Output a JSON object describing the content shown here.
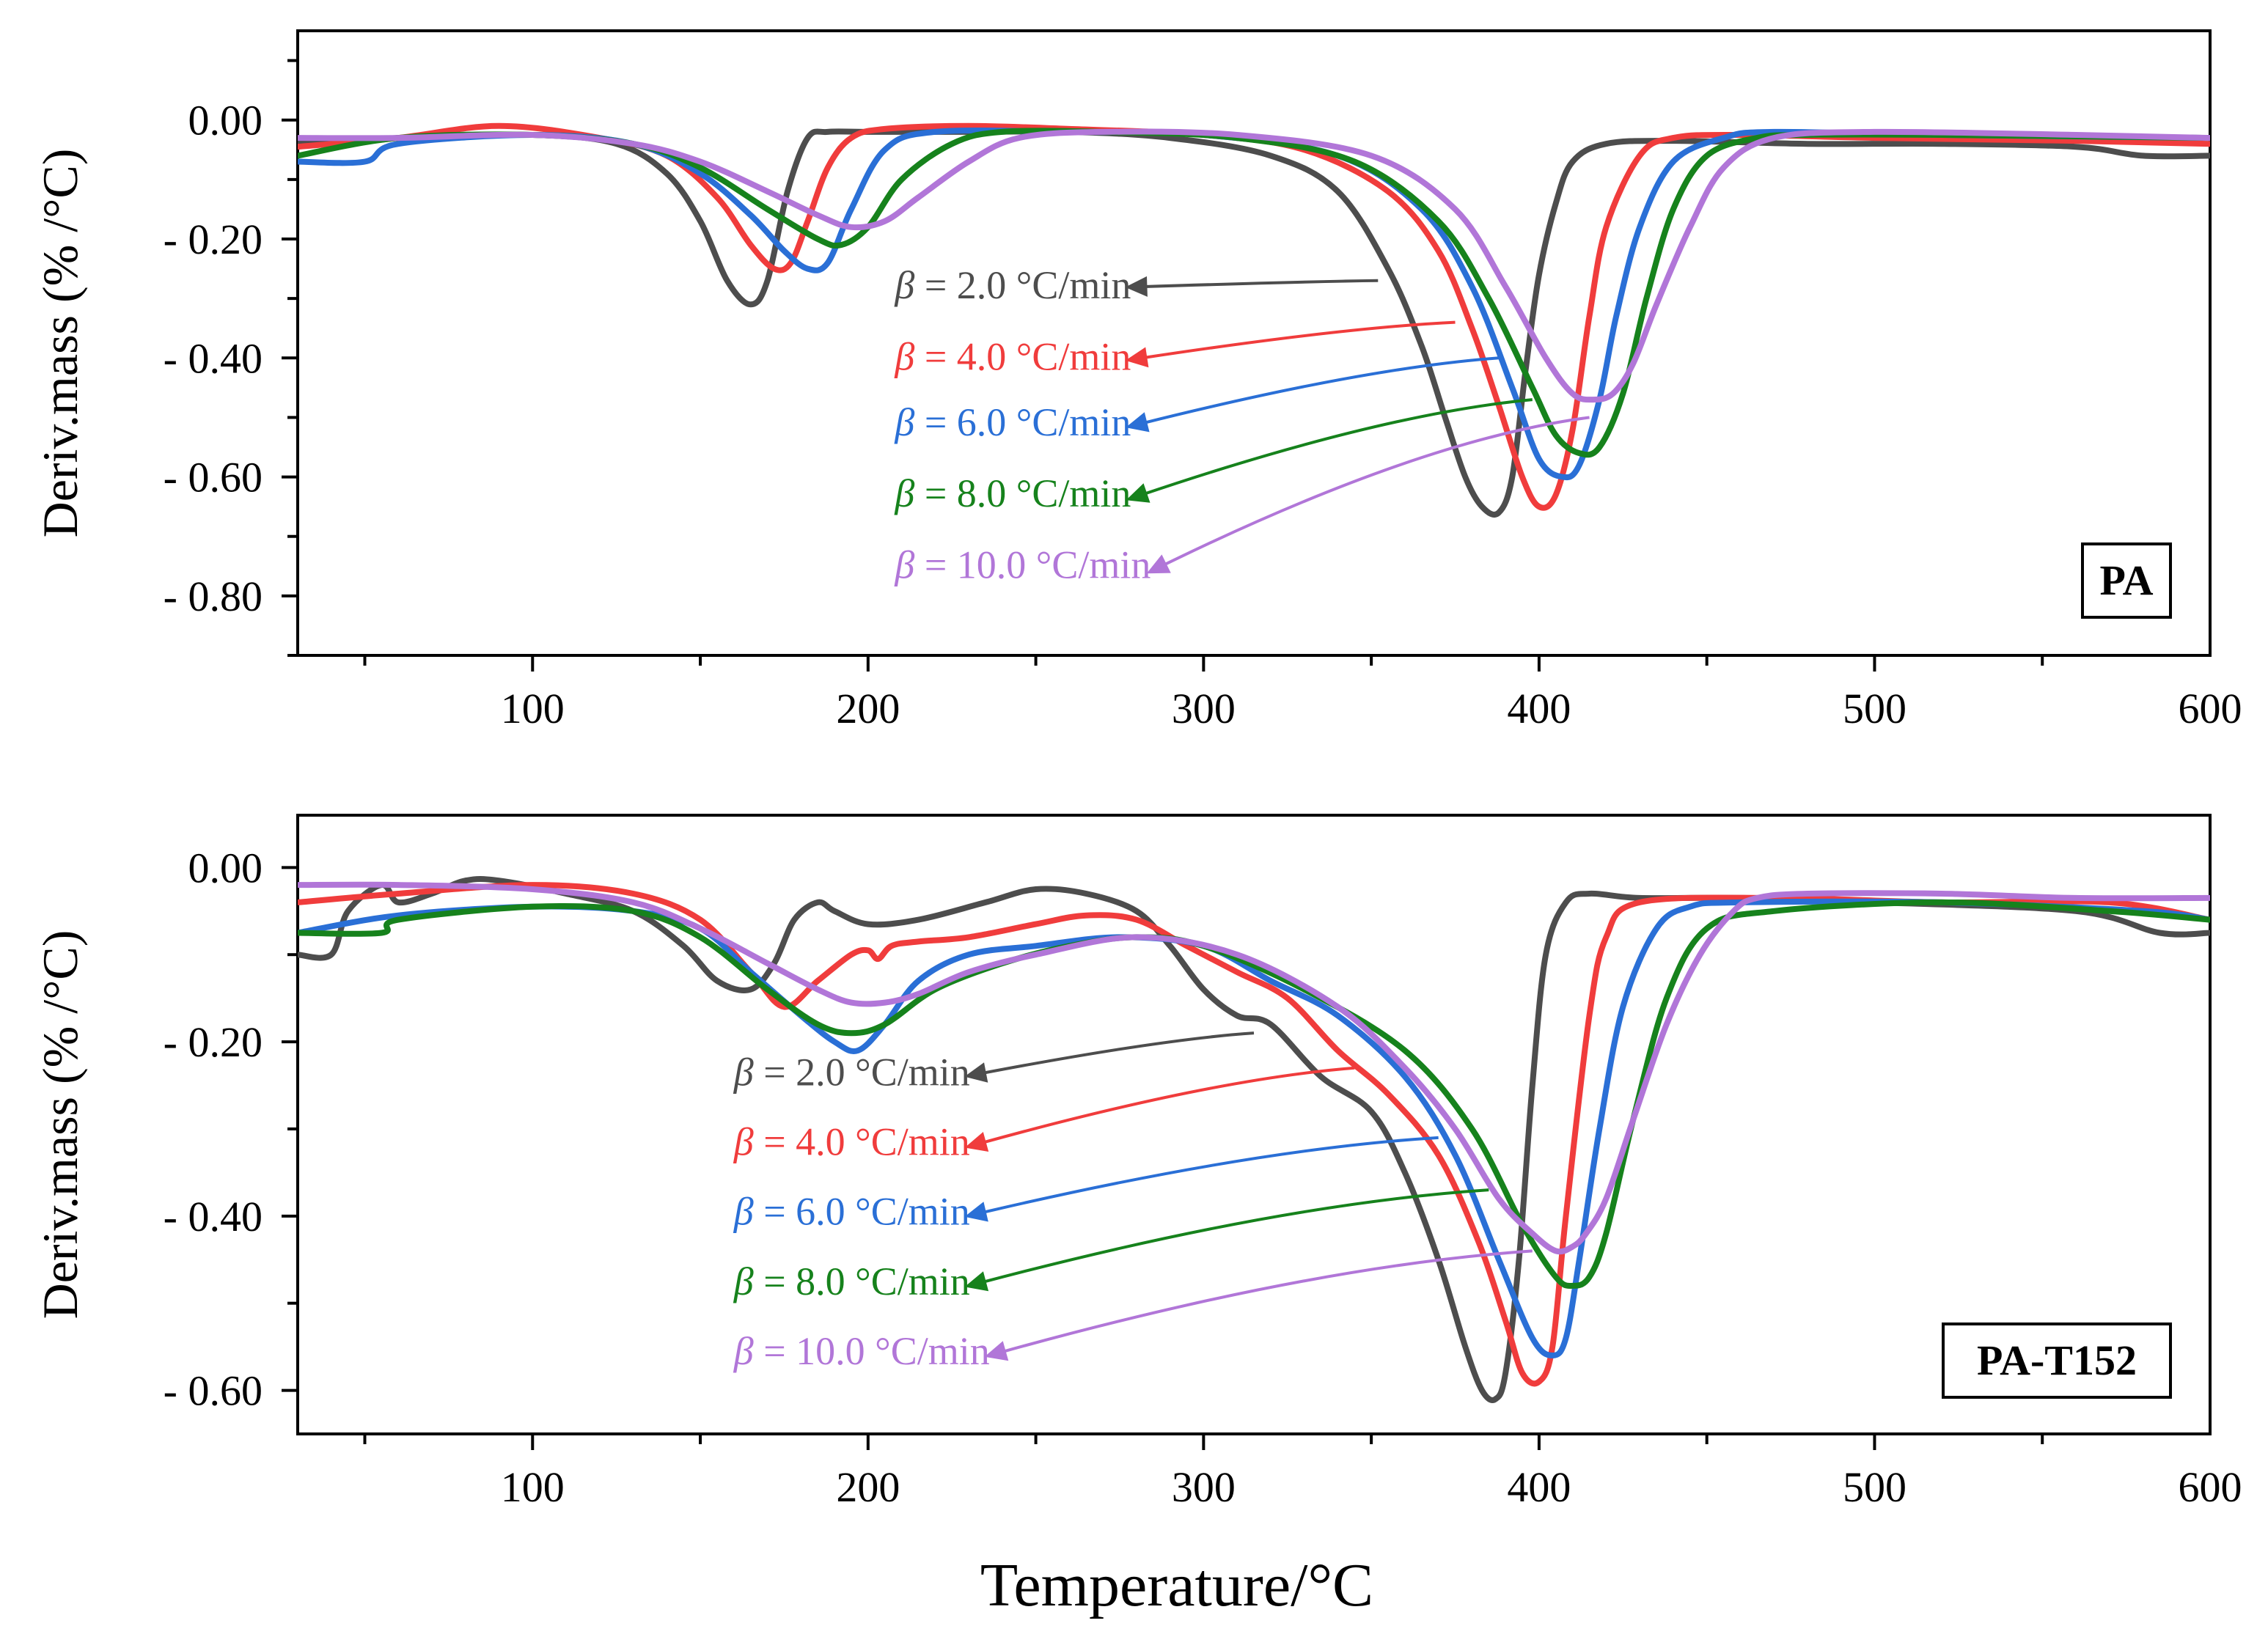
{
  "chart_data": [
    {
      "type": "line",
      "panel_label": "PA",
      "xlabel": "Temperature/°C",
      "ylabel": "Deriv.mass  (% /°C)",
      "xlim": [
        30,
        600
      ],
      "ylim": [
        -0.9,
        0.15
      ],
      "x_ticks": [
        100,
        200,
        300,
        400,
        500,
        600
      ],
      "x_tick_labels": [
        "100",
        "200",
        "300",
        "400",
        "500",
        "600"
      ],
      "y_ticks": [
        0.0,
        -0.2,
        -0.4,
        -0.6,
        -0.8
      ],
      "y_tick_labels": [
        "0.00",
        "- 0.20",
        "- 0.40",
        "- 0.60",
        "- 0.80"
      ],
      "series": [
        {
          "name": "β = 2.0 °C/min",
          "label_prefix": "β",
          "label_rest": " = 2.0 °C/min",
          "color": "#4d4d4d",
          "x": [
            30,
            60,
            100,
            125,
            140,
            150,
            158,
            165,
            170,
            176,
            182,
            188,
            200,
            230,
            260,
            290,
            320,
            340,
            355,
            365,
            372,
            378,
            383,
            388,
            392,
            396,
            400,
            405,
            410,
            420,
            440,
            480,
            520,
            560,
            580,
            600
          ],
          "y": [
            -0.04,
            -0.03,
            -0.025,
            -0.04,
            -0.09,
            -0.17,
            -0.27,
            -0.31,
            -0.27,
            -0.12,
            -0.03,
            -0.02,
            -0.02,
            -0.02,
            -0.02,
            -0.03,
            -0.06,
            -0.12,
            -0.25,
            -0.38,
            -0.5,
            -0.6,
            -0.65,
            -0.66,
            -0.6,
            -0.42,
            -0.26,
            -0.14,
            -0.07,
            -0.04,
            -0.035,
            -0.04,
            -0.04,
            -0.045,
            -0.06,
            -0.06
          ],
          "arrow_from": [
            352,
            -0.27
          ],
          "label_pos": [
            208,
            -0.3
          ]
        },
        {
          "name": "β = 4.0 °C/min",
          "label_prefix": "β",
          "label_rest": " = 4.0 °C/min",
          "color": "#f03c3c",
          "x": [
            30,
            60,
            90,
            120,
            140,
            155,
            165,
            172,
            177,
            182,
            188,
            195,
            205,
            230,
            260,
            300,
            330,
            355,
            370,
            380,
            388,
            395,
            400,
            405,
            410,
            415,
            420,
            430,
            440,
            460,
            500,
            560,
            600
          ],
          "y": [
            -0.045,
            -0.03,
            -0.01,
            -0.03,
            -0.06,
            -0.13,
            -0.21,
            -0.25,
            -0.24,
            -0.17,
            -0.08,
            -0.03,
            -0.015,
            -0.01,
            -0.015,
            -0.025,
            -0.05,
            -0.12,
            -0.22,
            -0.35,
            -0.48,
            -0.6,
            -0.65,
            -0.63,
            -0.52,
            -0.33,
            -0.18,
            -0.06,
            -0.03,
            -0.025,
            -0.03,
            -0.035,
            -0.04
          ],
          "arrow_from": [
            375,
            -0.34
          ],
          "label_pos": [
            208,
            -0.42
          ]
        },
        {
          "name": "β = 6.0 °C/min",
          "label_prefix": "β",
          "label_rest": " = 6.0 °C/min",
          "color": "#2a6fd6",
          "x": [
            30,
            50,
            60,
            100,
            130,
            150,
            165,
            175,
            182,
            188,
            195,
            205,
            220,
            260,
            300,
            340,
            365,
            380,
            392,
            400,
            407,
            412,
            418,
            423,
            430,
            440,
            455,
            470,
            520,
            600
          ],
          "y": [
            -0.07,
            -0.07,
            -0.04,
            -0.025,
            -0.04,
            -0.09,
            -0.16,
            -0.22,
            -0.25,
            -0.24,
            -0.15,
            -0.05,
            -0.02,
            -0.02,
            -0.025,
            -0.06,
            -0.15,
            -0.28,
            -0.45,
            -0.57,
            -0.6,
            -0.58,
            -0.47,
            -0.33,
            -0.18,
            -0.07,
            -0.03,
            -0.02,
            -0.025,
            -0.03
          ],
          "arrow_from": [
            388,
            -0.4
          ],
          "label_pos": [
            208,
            -0.53
          ]
        },
        {
          "name": "β = 8.0 °C/min",
          "label_prefix": "β",
          "label_rest": " = 8.0 °C/min",
          "color": "#16821c",
          "x": [
            30,
            60,
            100,
            130,
            150,
            170,
            185,
            192,
            200,
            210,
            225,
            240,
            270,
            310,
            345,
            370,
            385,
            398,
            405,
            412,
            418,
            425,
            432,
            440,
            450,
            465,
            480,
            520,
            600
          ],
          "y": [
            -0.06,
            -0.03,
            -0.025,
            -0.04,
            -0.08,
            -0.15,
            -0.2,
            -0.21,
            -0.18,
            -0.1,
            -0.04,
            -0.02,
            -0.02,
            -0.03,
            -0.07,
            -0.17,
            -0.3,
            -0.45,
            -0.53,
            -0.56,
            -0.55,
            -0.46,
            -0.3,
            -0.15,
            -0.06,
            -0.03,
            -0.025,
            -0.025,
            -0.03
          ],
          "arrow_from": [
            398,
            -0.47
          ],
          "label_pos": [
            208,
            -0.65
          ]
        },
        {
          "name": "β = 10.0 °C/min",
          "label_prefix": "β",
          "label_rest": " = 10.0 °C/min",
          "color": "#b176d8",
          "x": [
            30,
            60,
            100,
            130,
            150,
            170,
            185,
            195,
            205,
            215,
            230,
            245,
            270,
            310,
            350,
            375,
            390,
            402,
            410,
            416,
            422,
            428,
            435,
            445,
            455,
            470,
            500,
            560,
            600
          ],
          "y": [
            -0.03,
            -0.03,
            -0.025,
            -0.04,
            -0.07,
            -0.12,
            -0.16,
            -0.18,
            -0.17,
            -0.13,
            -0.07,
            -0.03,
            -0.02,
            -0.025,
            -0.06,
            -0.15,
            -0.28,
            -0.4,
            -0.46,
            -0.47,
            -0.46,
            -0.41,
            -0.31,
            -0.18,
            -0.08,
            -0.03,
            -0.02,
            -0.025,
            -0.03
          ],
          "arrow_from": [
            415,
            -0.5
          ],
          "label_pos": [
            208,
            -0.77
          ]
        }
      ]
    },
    {
      "type": "line",
      "panel_label": "PA-T152",
      "xlabel": "Temperature/°C",
      "ylabel": "Deriv.mass  (% /°C)",
      "xlim": [
        30,
        600
      ],
      "ylim": [
        -0.65,
        0.06
      ],
      "x_ticks": [
        100,
        200,
        300,
        400,
        500,
        600
      ],
      "x_tick_labels": [
        "100",
        "200",
        "300",
        "400",
        "500",
        "600"
      ],
      "y_ticks": [
        0.0,
        -0.2,
        -0.4,
        -0.6
      ],
      "y_tick_labels": [
        "0.00",
        "- 0.20",
        "- 0.40",
        "- 0.60"
      ],
      "series": [
        {
          "name": "β = 2.0 °C/min",
          "label_prefix": "β",
          "label_rest": " = 2.0 °C/min",
          "color": "#4d4d4d",
          "x": [
            30,
            40,
            45,
            55,
            60,
            70,
            80,
            90,
            110,
            130,
            145,
            155,
            165,
            172,
            178,
            185,
            190,
            200,
            215,
            235,
            250,
            265,
            280,
            290,
            300,
            310,
            320,
            335,
            350,
            360,
            370,
            378,
            383,
            387,
            390,
            394,
            398,
            402,
            408,
            415,
            430,
            460,
            500,
            560,
            585,
            600
          ],
          "y": [
            -0.1,
            -0.1,
            -0.05,
            -0.02,
            -0.04,
            -0.03,
            -0.015,
            -0.015,
            -0.03,
            -0.05,
            -0.09,
            -0.13,
            -0.14,
            -0.11,
            -0.06,
            -0.04,
            -0.05,
            -0.065,
            -0.06,
            -0.04,
            -0.025,
            -0.03,
            -0.05,
            -0.09,
            -0.14,
            -0.17,
            -0.18,
            -0.24,
            -0.28,
            -0.35,
            -0.45,
            -0.55,
            -0.6,
            -0.61,
            -0.58,
            -0.45,
            -0.25,
            -0.1,
            -0.04,
            -0.03,
            -0.035,
            -0.035,
            -0.04,
            -0.05,
            -0.075,
            -0.075
          ],
          "arrow_from": [
            315,
            -0.19
          ],
          "label_pos": [
            160,
            -0.25
          ]
        },
        {
          "name": "β = 4.0 °C/min",
          "label_prefix": "β",
          "label_rest": " = 4.0 °C/min",
          "color": "#f03c3c",
          "x": [
            30,
            60,
            100,
            130,
            150,
            165,
            175,
            185,
            195,
            200,
            203,
            207,
            215,
            230,
            250,
            265,
            280,
            295,
            310,
            325,
            340,
            355,
            370,
            382,
            390,
            395,
            400,
            404,
            408,
            415,
            420,
            430,
            470,
            520,
            570,
            600
          ],
          "y": [
            -0.04,
            -0.03,
            -0.02,
            -0.03,
            -0.06,
            -0.12,
            -0.16,
            -0.13,
            -0.1,
            -0.095,
            -0.105,
            -0.09,
            -0.085,
            -0.08,
            -0.065,
            -0.055,
            -0.06,
            -0.09,
            -0.12,
            -0.15,
            -0.21,
            -0.26,
            -0.33,
            -0.43,
            -0.52,
            -0.58,
            -0.59,
            -0.55,
            -0.4,
            -0.17,
            -0.08,
            -0.04,
            -0.035,
            -0.04,
            -0.04,
            -0.06
          ],
          "arrow_from": [
            345,
            -0.23
          ],
          "label_pos": [
            160,
            -0.33
          ]
        },
        {
          "name": "β = 6.0 °C/min",
          "label_prefix": "β",
          "label_rest": " = 6.0 °C/min",
          "color": "#2a6fd6",
          "x": [
            30,
            60,
            100,
            130,
            150,
            165,
            180,
            190,
            197,
            205,
            215,
            230,
            250,
            275,
            300,
            320,
            340,
            360,
            375,
            388,
            398,
            404,
            408,
            412,
            418,
            425,
            435,
            445,
            460,
            520,
            580,
            600
          ],
          "y": [
            -0.075,
            -0.055,
            -0.045,
            -0.05,
            -0.07,
            -0.12,
            -0.17,
            -0.2,
            -0.21,
            -0.18,
            -0.13,
            -0.1,
            -0.09,
            -0.08,
            -0.09,
            -0.13,
            -0.17,
            -0.24,
            -0.33,
            -0.45,
            -0.54,
            -0.56,
            -0.54,
            -0.45,
            -0.3,
            -0.16,
            -0.07,
            -0.045,
            -0.04,
            -0.04,
            -0.05,
            -0.06
          ],
          "arrow_from": [
            370,
            -0.31
          ],
          "label_pos": [
            160,
            -0.41
          ]
        },
        {
          "name": "β = 8.0 °C/min",
          "label_prefix": "β",
          "label_rest": " = 8.0 °C/min",
          "color": "#16821c",
          "x": [
            30,
            55,
            60,
            100,
            130,
            150,
            170,
            185,
            195,
            205,
            220,
            240,
            260,
            280,
            300,
            330,
            360,
            380,
            395,
            405,
            410,
            415,
            420,
            428,
            438,
            450,
            470,
            520,
            570,
            600
          ],
          "y": [
            -0.075,
            -0.075,
            -0.06,
            -0.045,
            -0.05,
            -0.08,
            -0.14,
            -0.18,
            -0.19,
            -0.18,
            -0.14,
            -0.11,
            -0.09,
            -0.08,
            -0.09,
            -0.14,
            -0.21,
            -0.3,
            -0.41,
            -0.47,
            -0.48,
            -0.47,
            -0.42,
            -0.29,
            -0.15,
            -0.07,
            -0.05,
            -0.04,
            -0.05,
            -0.06
          ],
          "arrow_from": [
            385,
            -0.37
          ],
          "label_pos": [
            160,
            -0.49
          ]
        },
        {
          "name": "β = 10.0 °C/min",
          "label_prefix": "β",
          "label_rest": " = 10.0 °C/min",
          "color": "#b176d8",
          "x": [
            30,
            60,
            100,
            130,
            150,
            170,
            185,
            195,
            205,
            215,
            230,
            250,
            280,
            310,
            340,
            360,
            375,
            388,
            398,
            405,
            410,
            414,
            420,
            428,
            438,
            448,
            458,
            465,
            480,
            520,
            560,
            600
          ],
          "y": [
            -0.02,
            -0.02,
            -0.025,
            -0.04,
            -0.07,
            -0.11,
            -0.14,
            -0.155,
            -0.155,
            -0.145,
            -0.12,
            -0.1,
            -0.08,
            -0.1,
            -0.16,
            -0.23,
            -0.3,
            -0.38,
            -0.42,
            -0.44,
            -0.435,
            -0.42,
            -0.38,
            -0.29,
            -0.18,
            -0.1,
            -0.05,
            -0.035,
            -0.03,
            -0.03,
            -0.035,
            -0.035
          ],
          "arrow_from": [
            398,
            -0.44
          ],
          "label_pos": [
            160,
            -0.57
          ]
        }
      ]
    }
  ]
}
